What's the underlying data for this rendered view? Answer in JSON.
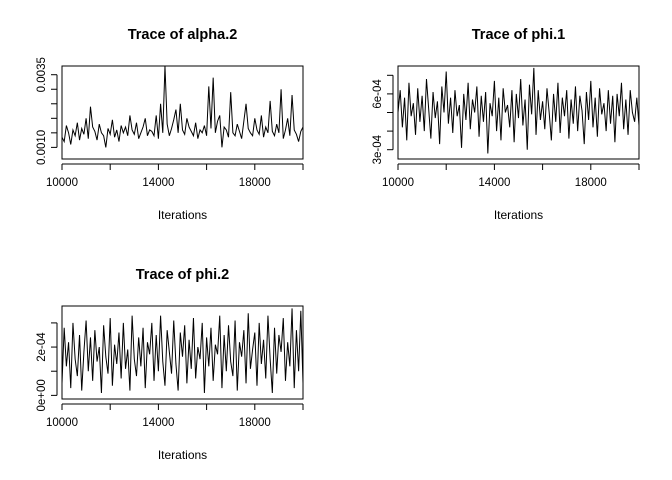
{
  "figure": {
    "background": "#ffffff",
    "line_color": "#000000"
  },
  "chart_data": [
    {
      "type": "line",
      "title": "Trace of alpha.2",
      "xlabel": "Iterations",
      "ylabel": "",
      "xlim": [
        10000,
        20000
      ],
      "ylim": [
        0.0006,
        0.0038
      ],
      "xticks": [
        10000,
        12000,
        14000,
        16000,
        18000,
        20000
      ],
      "xtick_labels": [
        "10000",
        "14000",
        "18000"
      ],
      "xtick_label_values": [
        10000,
        14000,
        18000
      ],
      "yticks": [
        0.001,
        0.0015,
        0.002,
        0.0025,
        0.003,
        0.0035
      ],
      "ytick_labels": [
        "0.0010",
        "0.0035"
      ],
      "ytick_label_values": [
        0.001,
        0.0035
      ],
      "series": [
        {
          "x_start": 10000,
          "x_end": 20000,
          "values": [
            0.00135,
            0.0012,
            0.00175,
            0.0015,
            0.0011,
            0.0016,
            0.0014,
            0.00185,
            0.00125,
            0.00165,
            0.00145,
            0.002,
            0.0013,
            0.0024,
            0.0017,
            0.00155,
            0.00125,
            0.0018,
            0.0015,
            0.0014,
            0.001,
            0.00165,
            0.00145,
            0.00195,
            0.00135,
            0.0016,
            0.0012,
            0.00175,
            0.0015,
            0.0017,
            0.0014,
            0.0021,
            0.0016,
            0.00145,
            0.00185,
            0.0013,
            0.0015,
            0.0017,
            0.002,
            0.0014,
            0.0016,
            0.00155,
            0.0014,
            0.0021,
            0.0013,
            0.0025,
            0.0015,
            0.0038,
            0.0018,
            0.0014,
            0.00165,
            0.00195,
            0.0023,
            0.0015,
            0.0025,
            0.0016,
            0.00145,
            0.002,
            0.0017,
            0.00155,
            0.0014,
            0.00185,
            0.0013,
            0.0016,
            0.0015,
            0.00175,
            0.0014,
            0.0031,
            0.00165,
            0.0034,
            0.0015,
            0.0019,
            0.0021,
            0.001,
            0.0017,
            0.0016,
            0.00135,
            0.0029,
            0.0015,
            0.0014,
            0.0018,
            0.00155,
            0.0013,
            0.0019,
            0.0025,
            0.00165,
            0.0015,
            0.0014,
            0.002,
            0.0016,
            0.00145,
            0.0021,
            0.00135,
            0.0017,
            0.0015,
            0.0026,
            0.00155,
            0.0014,
            0.0018,
            0.0015,
            0.003,
            0.0013,
            0.0016,
            0.002,
            0.0014,
            0.0028,
            0.0016,
            0.00145,
            0.0012,
            0.00155,
            0.0017
          ]
        }
      ]
    },
    {
      "type": "line",
      "title": "Trace of phi.1",
      "xlabel": "Iterations",
      "ylabel": "",
      "xlim": [
        10000,
        20000
      ],
      "ylim": [
        0.00025,
        0.00075
      ],
      "xticks": [
        10000,
        12000,
        14000,
        16000,
        18000,
        20000
      ],
      "xtick_labels": [
        "10000",
        "14000",
        "18000"
      ],
      "xtick_label_values": [
        10000,
        14000,
        18000
      ],
      "yticks": [
        0.0003,
        0.0004,
        0.0005,
        0.0006,
        0.0007
      ],
      "ytick_labels": [
        "3e-04",
        "6e-04"
      ],
      "ytick_label_values": [
        0.0003,
        0.0006
      ],
      "series": [
        {
          "x_start": 10000,
          "x_end": 20000,
          "values": [
            0.0005,
            0.00062,
            0.00042,
            0.00058,
            0.00035,
            0.00066,
            0.00048,
            0.00055,
            0.00038,
            0.00063,
            0.00045,
            0.00059,
            0.0004,
            0.00068,
            0.00052,
            0.00036,
            0.00061,
            0.00047,
            0.00056,
            0.00033,
            0.00064,
            0.0005,
            0.00072,
            0.00044,
            0.00058,
            0.00039,
            0.00062,
            0.00048,
            0.00054,
            0.00031,
            0.0006,
            0.00046,
            0.00066,
            0.00041,
            0.00057,
            0.0005,
            0.00064,
            0.00037,
            0.00059,
            0.00045,
            0.00061,
            0.00028,
            0.00055,
            0.00048,
            0.00067,
            0.0004,
            0.00058,
            0.00035,
            0.00063,
            0.0005,
            0.00054,
            0.00042,
            0.00062,
            0.00034,
            0.0006,
            0.00047,
            0.00068,
            0.00043,
            0.00057,
            0.0003,
            0.00065,
            0.00049,
            0.00074,
            0.00038,
            0.00062,
            0.00046,
            0.00056,
            0.00041,
            0.00063,
            0.0005,
            0.00035,
            0.0006,
            0.00045,
            0.00066,
            0.00039,
            0.00058,
            0.00048,
            0.00062,
            0.00036,
            0.00057,
            0.00044,
            0.00064,
            0.0004,
            0.00059,
            0.00051,
            0.00033,
            0.00061,
            0.00046,
            0.00067,
            0.00042,
            0.00058,
            0.00037,
            0.00063,
            0.00049,
            0.00055,
            0.0004,
            0.00062,
            0.00044,
            0.00059,
            0.00034,
            0.0006,
            0.00048,
            0.00066,
            0.00041,
            0.00057,
            0.00038,
            0.00062,
            0.0005,
            0.00045,
            0.00058,
            0.00043
          ]
        }
      ]
    },
    {
      "type": "line",
      "title": "Trace of phi.2",
      "xlabel": "Iterations",
      "ylabel": "",
      "xlim": [
        10000,
        20000
      ],
      "ylim": [
        -1.5e-05,
        0.00037
      ],
      "xticks": [
        10000,
        12000,
        14000,
        16000,
        18000,
        20000
      ],
      "xtick_labels": [
        "10000",
        "14000",
        "18000"
      ],
      "xtick_label_values": [
        10000,
        14000,
        18000
      ],
      "yticks": [
        0,
        0.0001,
        0.0002,
        0.0003
      ],
      "ytick_labels": [
        "0e+00",
        "2e-04"
      ],
      "ytick_label_values": [
        0,
        0.0002
      ],
      "series": [
        {
          "x_start": 10000,
          "x_end": 20000,
          "values": [
            5e-05,
            0.00028,
            0.00012,
            0.00022,
            3e-05,
            0.0003,
            0.00015,
            8e-05,
            0.00025,
            2e-05,
            0.00018,
            0.00031,
            0.0001,
            0.00024,
            6e-05,
            0.00027,
            0.00014,
            0.0002,
            1e-05,
            0.00029,
            0.00016,
            9e-05,
            0.00032,
            4e-05,
            0.00021,
            0.00013,
            0.00026,
            7e-05,
            0.0003,
            0.00011,
            0.00019,
            2e-05,
            0.00033,
            0.00015,
            8e-05,
            0.00024,
            0.00012,
            0.00028,
            3e-05,
            0.00022,
            0.00017,
            0.0003,
            6e-05,
            0.00025,
            0.0001,
            0.00033,
            0.00014,
            4e-05,
            0.00027,
            0.00018,
            9e-05,
            0.00031,
            0.00013,
            2e-05,
            0.00026,
            0.00016,
            0.00029,
            5e-05,
            0.00023,
            0.00011,
            0.00032,
            7e-05,
            0.0002,
            0.00015,
            0.0003,
            1e-05,
            0.00024,
            0.00012,
            0.00028,
            6e-05,
            0.00021,
            0.00017,
            0.00033,
            3e-05,
            0.00025,
            0.0001,
            0.00029,
            0.00014,
            8e-05,
            0.00031,
            2e-05,
            0.00022,
            0.00016,
            0.00027,
            5e-05,
            0.00034,
            0.00011,
            0.00019,
            0.00026,
            4e-05,
            0.0003,
            0.00013,
            0.00023,
            7e-05,
            0.00033,
            0.00015,
            1e-05,
            0.00028,
            9e-05,
            0.00025,
            0.00018,
            0.00032,
            6e-05,
            0.00022,
            0.00012,
            0.00036,
            3e-05,
            0.00027,
            0.0001,
            0.00035,
            5e-05
          ]
        }
      ]
    }
  ]
}
